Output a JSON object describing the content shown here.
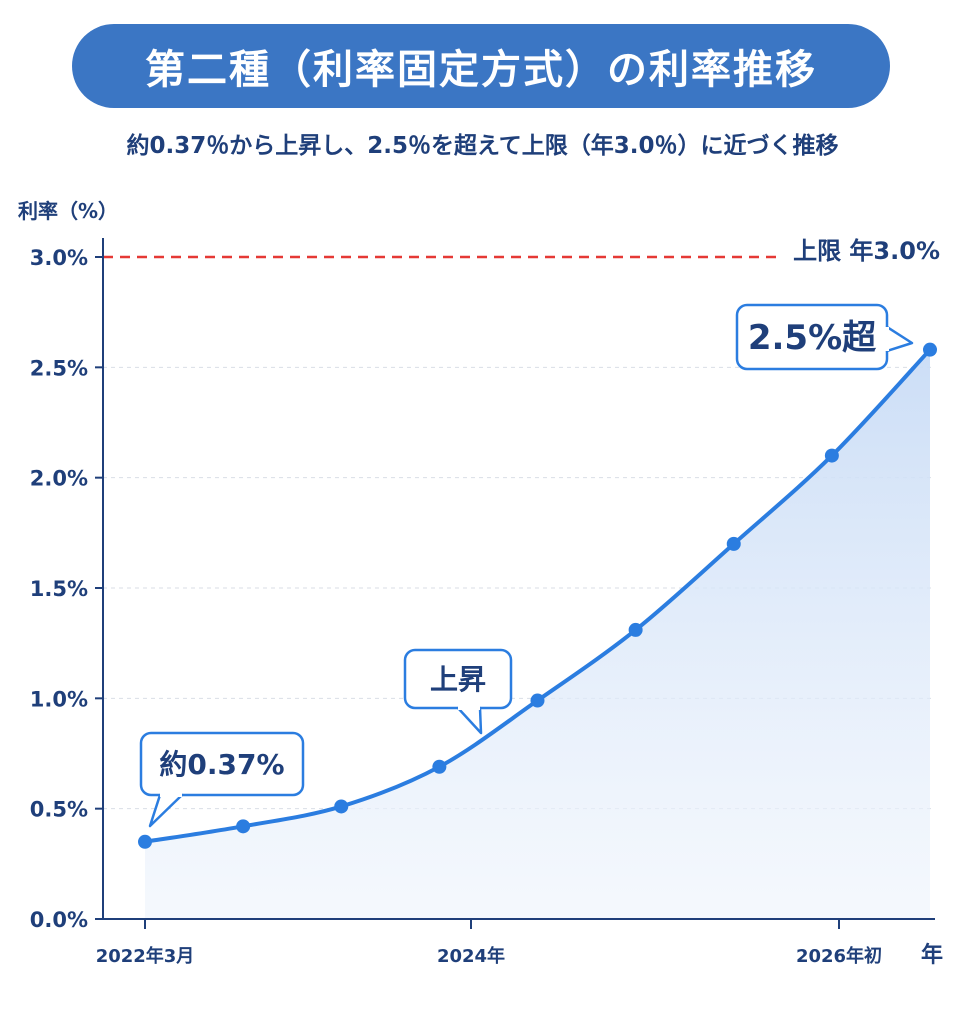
{
  "title": "第二種（利率固定方式）の利率推移",
  "subtitle": "約0.37％から上昇し、2.5％を超えて上限（年3.0％）に近づく推移",
  "colors": {
    "title_bg": "#3b76c4",
    "line": "#2b7de0",
    "limit": "#e53935",
    "text": "#1f3f7a"
  },
  "chart_data": {
    "type": "area",
    "ylabel": "利率（%）",
    "ylim": [
      0,
      3.0
    ],
    "yticks": [
      "0.0%",
      "0.5%",
      "1.0%",
      "1.5%",
      "2.0%",
      "2.5%",
      "3.0%"
    ],
    "xticks": [
      "2022年3月",
      "2024年",
      "2026年初"
    ],
    "x_unit_label": "年",
    "grid": true,
    "series": [
      {
        "values": [
          0.35,
          0.42,
          0.51,
          0.69,
          0.99,
          1.31,
          1.7,
          2.1,
          2.58
        ]
      }
    ],
    "limit": {
      "value": 3.0,
      "label": "上限 年3.0%"
    },
    "annotations": [
      {
        "text": "約0.37%",
        "point_index": 0
      },
      {
        "text": "上昇",
        "point_index": 3
      },
      {
        "text": "2.5%超",
        "point_index": 8
      }
    ]
  }
}
